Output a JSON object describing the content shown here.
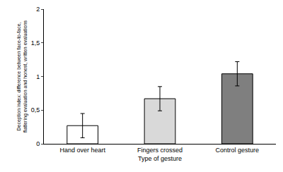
{
  "chart_data": {
    "type": "bar",
    "categories": [
      "Hand over heart",
      "Fingers crossed",
      "Control gesture"
    ],
    "values": [
      0.27,
      0.67,
      1.04
    ],
    "errors": [
      0.18,
      0.18,
      0.18
    ],
    "colors": [
      "#ffffff",
      "#d9d9d9",
      "#7f7f7f"
    ],
    "x_label": "Type of gesture",
    "y_label": "Deception index: difference between face-to-face, flattering evaluation and honest, written evaluations",
    "ylim": [
      0,
      2
    ],
    "yticks": [
      0,
      {
        "value": 0.5,
        "label": "0,5"
      },
      1,
      {
        "value": 1.5,
        "label": "1,5"
      },
      2
    ],
    "grid": false
  }
}
